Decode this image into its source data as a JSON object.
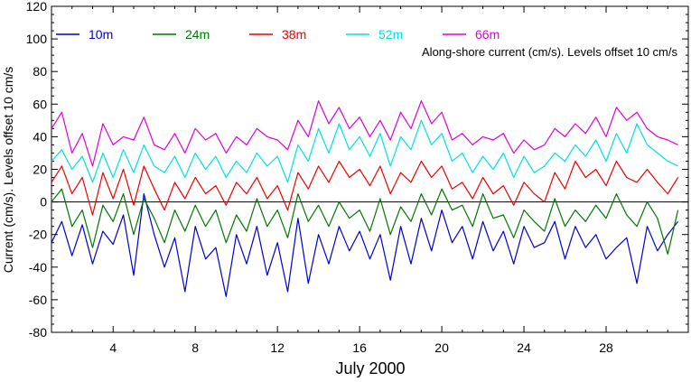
{
  "chart_data": {
    "type": "line",
    "annotation": "Along-shore current (cm/s). Levels offset 10 cm/s",
    "xlabel": "July 2000",
    "ylabel": "Current (cm/s). Levels offset 10 cm/s",
    "xlim": [
      1,
      32
    ],
    "ylim": [
      -80,
      120
    ],
    "xticks": [
      4,
      8,
      12,
      16,
      20,
      24,
      28
    ],
    "yticks": [
      -80,
      -60,
      -40,
      -20,
      0,
      20,
      40,
      60,
      80,
      100,
      120
    ],
    "legend_position": "top",
    "grid": false,
    "zero_line": true,
    "series": [
      {
        "name": "10m",
        "color": "#0000cc",
        "x": [
          1,
          1.5,
          2,
          2.5,
          3,
          3.5,
          4,
          4.5,
          5,
          5.5,
          6,
          6.5,
          7,
          7.5,
          8,
          8.5,
          9,
          9.5,
          10,
          10.5,
          11,
          11.5,
          12,
          12.5,
          13,
          13.5,
          14,
          14.5,
          15,
          15.5,
          16,
          16.5,
          17,
          17.5,
          18,
          18.5,
          19,
          19.5,
          20,
          20.5,
          21,
          21.5,
          22,
          22.5,
          23,
          23.5,
          24,
          24.5,
          25,
          25.5,
          26,
          26.5,
          27,
          27.5,
          28,
          28.5,
          29,
          29.5,
          30,
          30.5,
          31,
          31.5
        ],
        "values": [
          -25,
          -12,
          -33,
          -14,
          -38,
          -18,
          -26,
          -8,
          -45,
          5,
          -20,
          -40,
          -22,
          -55,
          -15,
          -35,
          -28,
          -58,
          -20,
          -38,
          -15,
          -45,
          -25,
          -55,
          -10,
          -50,
          -20,
          -38,
          -15,
          -30,
          -18,
          -35,
          -20,
          -48,
          -15,
          -38,
          -10,
          -30,
          -5,
          -25,
          -15,
          -35,
          -12,
          -30,
          -18,
          -38,
          -15,
          -28,
          -25,
          -12,
          -35,
          -15,
          -28,
          -20,
          -35,
          -28,
          -22,
          -50,
          -15,
          -30,
          -20,
          -12
        ]
      },
      {
        "name": "24m",
        "color": "#007700",
        "x": [
          1,
          1.5,
          2,
          2.5,
          3,
          3.5,
          4,
          4.5,
          5,
          5.5,
          6,
          6.5,
          7,
          7.5,
          8,
          8.5,
          9,
          9.5,
          10,
          10.5,
          11,
          11.5,
          12,
          12.5,
          13,
          13.5,
          14,
          14.5,
          15,
          15.5,
          16,
          16.5,
          17,
          17.5,
          18,
          18.5,
          19,
          19.5,
          20,
          20.5,
          21,
          21.5,
          22,
          22.5,
          23,
          23.5,
          24,
          24.5,
          25,
          25.5,
          26,
          26.5,
          27,
          27.5,
          28,
          28.5,
          29,
          29.5,
          30,
          30.5,
          31,
          31.5
        ],
        "values": [
          0,
          8,
          -15,
          -5,
          -28,
          -2,
          -12,
          5,
          -20,
          2,
          -10,
          -25,
          -5,
          -18,
          -2,
          -15,
          -5,
          -25,
          -8,
          -18,
          2,
          -15,
          -5,
          -22,
          5,
          -12,
          -2,
          -15,
          0,
          -10,
          -5,
          -18,
          2,
          -20,
          -3,
          -12,
          5,
          -8,
          8,
          -5,
          -2,
          -15,
          5,
          -10,
          -8,
          -22,
          -5,
          -12,
          -18,
          2,
          -15,
          -5,
          -12,
          -2,
          -10,
          5,
          -8,
          -15,
          0,
          -10,
          -32,
          -5
        ]
      },
      {
        "name": "38m",
        "color": "#ee0000",
        "x": [
          1,
          1.5,
          2,
          2.5,
          3,
          3.5,
          4,
          4.5,
          5,
          5.5,
          6,
          6.5,
          7,
          7.5,
          8,
          8.5,
          9,
          9.5,
          10,
          10.5,
          11,
          11.5,
          12,
          12.5,
          13,
          13.5,
          14,
          14.5,
          15,
          15.5,
          16,
          16.5,
          17,
          17.5,
          18,
          18.5,
          19,
          19.5,
          20,
          20.5,
          21,
          21.5,
          22,
          22.5,
          23,
          23.5,
          24,
          24.5,
          25,
          25.5,
          26,
          26.5,
          27,
          27.5,
          28,
          28.5,
          29,
          29.5,
          30,
          30.5,
          31,
          31.5
        ],
        "values": [
          12,
          22,
          5,
          15,
          -8,
          18,
          2,
          20,
          -2,
          22,
          8,
          -5,
          12,
          2,
          15,
          5,
          10,
          -2,
          12,
          5,
          15,
          2,
          10,
          -5,
          18,
          8,
          22,
          12,
          25,
          15,
          20,
          10,
          22,
          5,
          18,
          12,
          25,
          15,
          22,
          8,
          12,
          2,
          15,
          5,
          10,
          -2,
          12,
          5,
          0,
          18,
          8,
          25,
          15,
          20,
          10,
          25,
          15,
          12,
          20,
          12,
          5,
          15
        ]
      },
      {
        "name": "52m",
        "color": "#00e0e0",
        "x": [
          1,
          1.5,
          2,
          2.5,
          3,
          3.5,
          4,
          4.5,
          5,
          5.5,
          6,
          6.5,
          7,
          7.5,
          8,
          8.5,
          9,
          9.5,
          10,
          10.5,
          11,
          11.5,
          12,
          12.5,
          13,
          13.5,
          14,
          14.5,
          15,
          15.5,
          16,
          16.5,
          17,
          17.5,
          18,
          18.5,
          19,
          19.5,
          20,
          20.5,
          21,
          21.5,
          22,
          22.5,
          23,
          23.5,
          24,
          24.5,
          25,
          25.5,
          26,
          26.5,
          27,
          27.5,
          28,
          28.5,
          29,
          29.5,
          30,
          30.5,
          31,
          31.5
        ],
        "values": [
          25,
          32,
          20,
          28,
          12,
          30,
          15,
          32,
          18,
          35,
          22,
          18,
          28,
          15,
          30,
          20,
          28,
          15,
          25,
          18,
          30,
          22,
          28,
          12,
          35,
          25,
          45,
          30,
          48,
          32,
          40,
          28,
          42,
          22,
          40,
          32,
          50,
          35,
          42,
          25,
          30,
          18,
          28,
          20,
          30,
          15,
          28,
          18,
          22,
          30,
          25,
          35,
          28,
          38,
          25,
          42,
          30,
          48,
          35,
          30,
          25,
          22
        ]
      },
      {
        "name": "66m",
        "color": "#dd00dd",
        "x": [
          1,
          1.5,
          2,
          2.5,
          3,
          3.5,
          4,
          4.5,
          5,
          5.5,
          6,
          6.5,
          7,
          7.5,
          8,
          8.5,
          9,
          9.5,
          10,
          10.5,
          11,
          11.5,
          12,
          12.5,
          13,
          13.5,
          14,
          14.5,
          15,
          15.5,
          16,
          16.5,
          17,
          17.5,
          18,
          18.5,
          19,
          19.5,
          20,
          20.5,
          21,
          21.5,
          22,
          22.5,
          23,
          23.5,
          24,
          24.5,
          25,
          25.5,
          26,
          26.5,
          27,
          27.5,
          28,
          28.5,
          29,
          29.5,
          30,
          30.5,
          31,
          31.5
        ],
        "values": [
          45,
          55,
          30,
          42,
          22,
          48,
          35,
          40,
          38,
          52,
          35,
          32,
          42,
          30,
          45,
          38,
          42,
          30,
          40,
          35,
          45,
          40,
          38,
          32,
          50,
          40,
          62,
          48,
          58,
          45,
          52,
          40,
          50,
          38,
          55,
          45,
          62,
          48,
          55,
          38,
          42,
          35,
          40,
          38,
          42,
          30,
          38,
          32,
          35,
          45,
          40,
          48,
          42,
          52,
          40,
          58,
          50,
          55,
          45,
          40,
          38,
          35
        ]
      }
    ]
  }
}
